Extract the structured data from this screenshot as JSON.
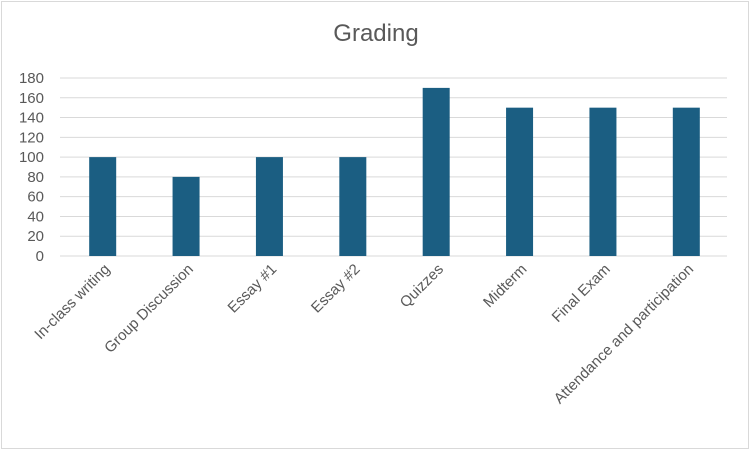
{
  "chart_data": {
    "type": "bar",
    "title": "Grading",
    "categories": [
      "In-class writing",
      "Group Discussion",
      "Essay #1",
      "Essay #2",
      "Quizzes",
      "Midterm",
      "Final Exam",
      "Attendance and participation"
    ],
    "values": [
      100,
      80,
      100,
      100,
      170,
      150,
      150,
      150
    ],
    "y_ticks": [
      "0",
      "20",
      "40",
      "60",
      "80",
      "100",
      "120",
      "140",
      "160",
      "180"
    ],
    "ylim": [
      0,
      180
    ],
    "grid": true,
    "legend": "none",
    "colors": {
      "bar": "#1b5e82",
      "grid": "#d9d9d9",
      "text": "#595959"
    }
  }
}
